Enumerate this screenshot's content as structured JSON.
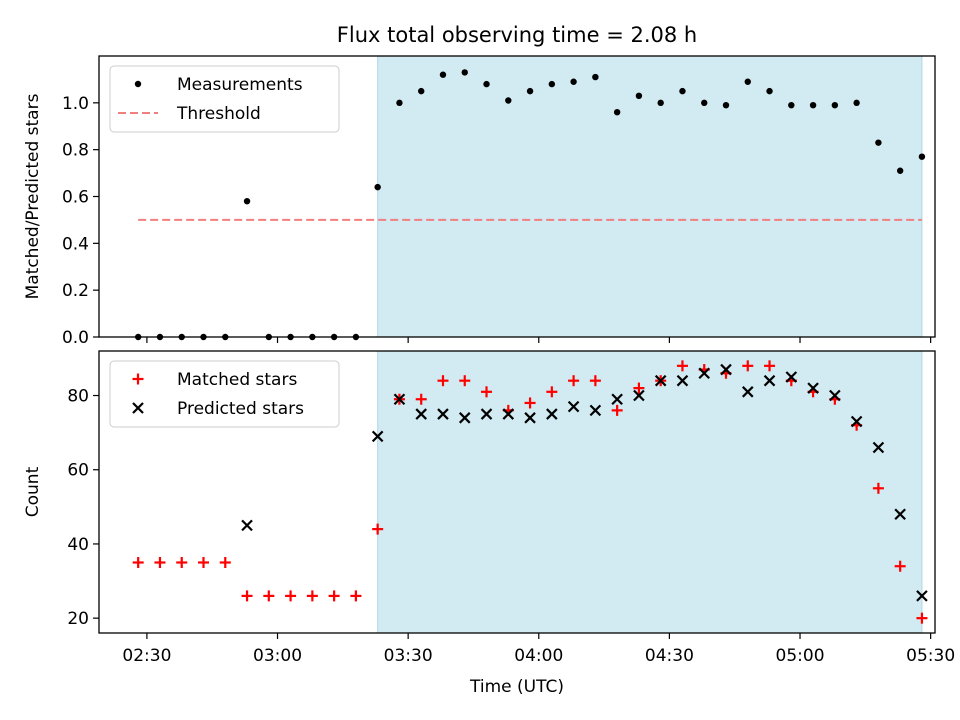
{
  "chart_data": {
    "type": "scatter",
    "title": "Flux total observing time = 2.08 h",
    "xlabel": "Time (UTC)",
    "x_ticks": [
      "02:30",
      "03:00",
      "03:30",
      "04:00",
      "04:30",
      "05:00",
      "05:30"
    ],
    "x_range": [
      "02:19",
      "05:31"
    ],
    "shaded_interval": [
      "03:23",
      "05:28"
    ],
    "shade_color": "#add8e6",
    "times": [
      "02:28",
      "02:33",
      "02:38",
      "02:43",
      "02:48",
      "02:53",
      "02:58",
      "03:03",
      "03:08",
      "03:13",
      "03:18",
      "03:23",
      "03:28",
      "03:33",
      "03:38",
      "03:43",
      "03:48",
      "03:53",
      "03:58",
      "04:03",
      "04:08",
      "04:13",
      "04:18",
      "04:23",
      "04:28",
      "04:33",
      "04:38",
      "04:43",
      "04:48",
      "04:53",
      "04:58",
      "05:03",
      "05:08",
      "05:13",
      "05:18",
      "05:23",
      "05:28"
    ],
    "panels": [
      {
        "ylabel": "Matched/Predicted stars",
        "ylim": [
          0,
          1.2
        ],
        "yticks": [
          "0.0",
          "0.2",
          "0.4",
          "0.6",
          "0.8",
          "1.0"
        ],
        "legend_position": "top-left",
        "series": [
          {
            "name": "Measurements",
            "marker": "dot",
            "color": "#000000",
            "values": [
              0,
              0,
              0,
              0,
              0,
              0.58,
              0,
              0,
              0,
              0,
              0,
              0.64,
              1.0,
              1.05,
              1.12,
              1.13,
              1.08,
              1.01,
              1.05,
              1.08,
              1.09,
              1.11,
              0.96,
              1.03,
              1.0,
              1.05,
              1.0,
              0.99,
              1.09,
              1.05,
              0.99,
              0.99,
              0.99,
              1.0,
              0.83,
              0.71,
              0.77
            ]
          },
          {
            "name": "Threshold",
            "marker": "dashed-line",
            "color": "#f08080",
            "x": [
              "02:28",
              "05:28"
            ],
            "values": [
              0.5,
              0.5
            ]
          }
        ]
      },
      {
        "ylabel": "Count",
        "ylim": [
          16,
          92
        ],
        "yticks": [
          "20",
          "40",
          "60",
          "80"
        ],
        "legend_position": "top-left",
        "series": [
          {
            "name": "Matched stars",
            "marker": "plus",
            "color": "#ff0000",
            "values": [
              35,
              35,
              35,
              35,
              35,
              26,
              26,
              26,
              26,
              26,
              26,
              44,
              79,
              79,
              84,
              84,
              81,
              76,
              78,
              81,
              84,
              84,
              76,
              82,
              84,
              88,
              87,
              86,
              88,
              88,
              84,
              81,
              79,
              72,
              55,
              34,
              20
            ]
          },
          {
            "name": "Predicted stars",
            "marker": "x",
            "color": "#000000",
            "values": [
              null,
              null,
              null,
              null,
              null,
              45,
              null,
              null,
              null,
              null,
              null,
              69,
              79,
              75,
              75,
              74,
              75,
              75,
              74,
              75,
              77,
              76,
              79,
              80,
              84,
              84,
              86,
              87,
              81,
              84,
              85,
              82,
              80,
              73,
              66,
              48,
              26
            ]
          }
        ]
      }
    ]
  }
}
